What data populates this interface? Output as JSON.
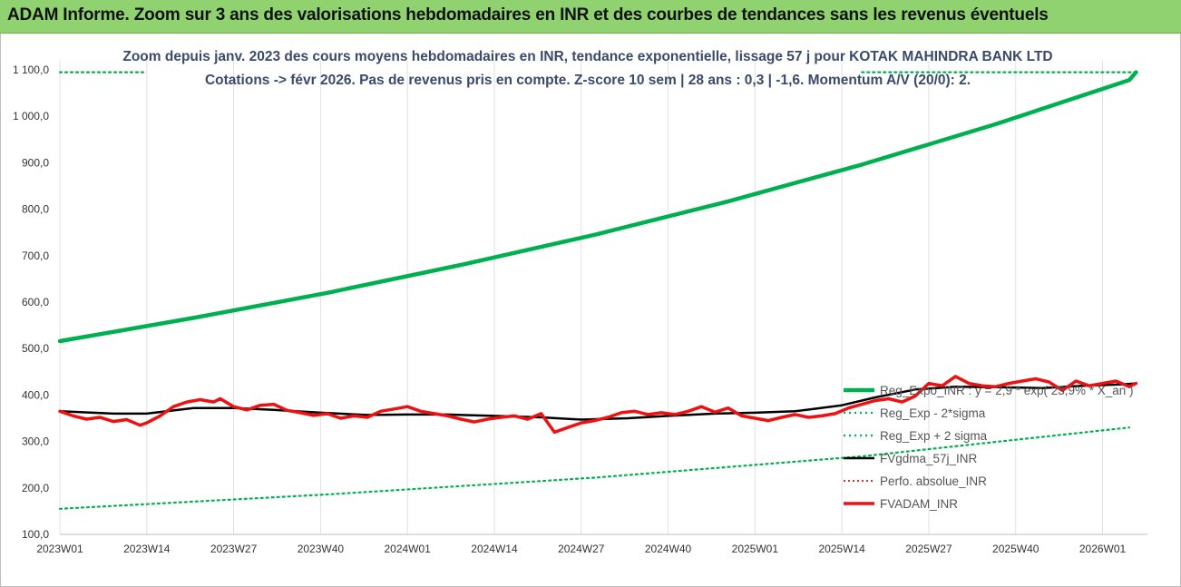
{
  "header": {
    "title": "ADAM Informe. Zoom sur 3 ans des valorisations hebdomadaires en INR et des courbes de tendances sans les revenus éventuels"
  },
  "chart_data": {
    "type": "line",
    "subtitle_line1": "Zoom depuis janv. 2023 des cours moyens hebdomadaires en INR, tendance exponentielle, lissage 57 j pour KOTAK MAHINDRA BANK LTD",
    "subtitle_line2": "Cotations -> févr 2026. Pas de revenus pris en compte. Z-score 10 sem | 28 ans : 0,3 | -1,6. Momentum A/V (20/0): 2.",
    "ylim": [
      100,
      1100
    ],
    "y_ticks": [
      "100,0",
      "200,0",
      "300,0",
      "400,0",
      "500,0",
      "600,0",
      "700,0",
      "800,0",
      "900,0",
      "1 000,0",
      "1 100,0"
    ],
    "x_tick_labels": [
      "2023W01",
      "2023W14",
      "2023W27",
      "2023W40",
      "2024W01",
      "2024W14",
      "2024W27",
      "2024W40",
      "2025W01",
      "2025W14",
      "2025W27",
      "2025W40",
      "2026W01"
    ],
    "grid": "vertical",
    "legend_position": "right",
    "legend": [
      "Reg_Expo_INR : y = 2,9 * exp( 23,9% * X_an )",
      "Reg_Exp - 2*sigma",
      "Reg_Exp + 2 sigma",
      "FVgdma_57j_INR",
      "Perfo. absolue_INR",
      "FVADAM_INR"
    ],
    "colors": {
      "reg_expo": "#00b050",
      "sigma_bands": "#00b050",
      "gdma": "#000000",
      "perfo": "#e03030",
      "adam": "#ee1111"
    },
    "series": {
      "reg_expo": {
        "x": [
          0,
          20,
          40,
          60,
          80,
          100,
          120,
          140,
          160,
          161
        ],
        "values": [
          516,
          566,
          620,
          680,
          745,
          817,
          896,
          983,
          1078,
          1095
        ]
      },
      "minus_2sigma": {
        "x": [
          0,
          40,
          80,
          120,
          160
        ],
        "values": [
          155,
          186,
          222,
          268,
          330
        ]
      },
      "plus_2sigma_tail": {
        "x": [
          120,
          161
        ],
        "values": [
          1095,
          1095
        ]
      },
      "plus_2sigma_head": {
        "x": [
          0,
          13
        ],
        "values": [
          1095,
          1095
        ]
      },
      "gdma": {
        "x": [
          0,
          8,
          13,
          16,
          20,
          26,
          32,
          39,
          46,
          52,
          58,
          65,
          72,
          78,
          85,
          91,
          98,
          104,
          110,
          117,
          122,
          128,
          134,
          140,
          147,
          153,
          159,
          161
        ],
        "values": [
          365,
          360,
          360,
          365,
          372,
          372,
          368,
          362,
          357,
          358,
          358,
          355,
          352,
          347,
          350,
          355,
          360,
          362,
          365,
          378,
          395,
          412,
          418,
          417,
          415,
          420,
          423,
          425
        ]
      },
      "adam": {
        "x": [
          0,
          2,
          4,
          6,
          8,
          10,
          12,
          13,
          15,
          17,
          19,
          21,
          23,
          24,
          26,
          28,
          30,
          32,
          34,
          36,
          38,
          40,
          42,
          44,
          46,
          48,
          50,
          52,
          54,
          56,
          58,
          60,
          62,
          64,
          66,
          68,
          70,
          72,
          74,
          76,
          78,
          80,
          82,
          84,
          86,
          88,
          90,
          92,
          94,
          96,
          98,
          100,
          102,
          104,
          106,
          108,
          110,
          112,
          114,
          116,
          118,
          120,
          122,
          124,
          126,
          128,
          130,
          132,
          134,
          136,
          138,
          140,
          142,
          144,
          146,
          148,
          150,
          152,
          154,
          156,
          158,
          160,
          161
        ],
        "values": [
          365,
          355,
          348,
          352,
          343,
          347,
          335,
          340,
          355,
          375,
          385,
          390,
          385,
          392,
          375,
          368,
          378,
          380,
          367,
          362,
          356,
          360,
          350,
          355,
          352,
          365,
          370,
          375,
          365,
          360,
          355,
          348,
          342,
          348,
          352,
          355,
          348,
          360,
          320,
          330,
          340,
          345,
          352,
          362,
          365,
          358,
          362,
          358,
          365,
          375,
          363,
          372,
          355,
          350,
          345,
          352,
          358,
          352,
          355,
          360,
          372,
          380,
          388,
          392,
          385,
          398,
          425,
          420,
          440,
          425,
          420,
          418,
          425,
          430,
          435,
          428,
          410,
          430,
          420,
          425,
          430,
          418,
          425
        ]
      }
    }
  }
}
